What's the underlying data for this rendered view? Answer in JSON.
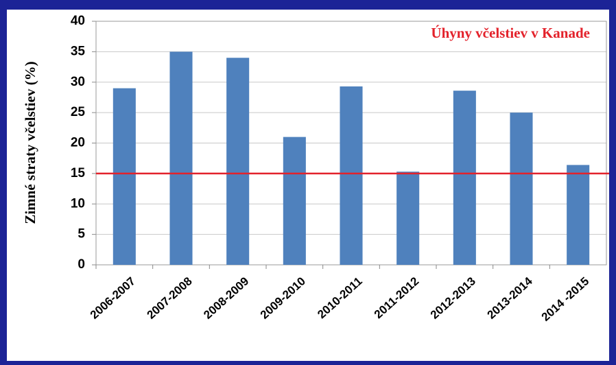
{
  "chart_data": {
    "type": "bar",
    "title": "Úhyny včelstiev v Kanade",
    "y_label": "Zimné straty včelstiev (%)",
    "categories": [
      "2006-2007",
      "2007-2008",
      "2008-2009",
      "2009-2010",
      "2010-2011",
      "2011-2012",
      "2012-2013",
      "2013-2014",
      "2014 -2015"
    ],
    "values": [
      29,
      35,
      34,
      21,
      29.3,
      15.3,
      28.6,
      25,
      16.4
    ],
    "color": "#4f81bd",
    "ylim": [
      0,
      40
    ],
    "yticks": [
      0,
      5,
      10,
      15,
      20,
      25,
      30,
      35,
      40
    ],
    "grid": true,
    "reference_line": {
      "value": 15,
      "color": "#e3222b"
    }
  }
}
